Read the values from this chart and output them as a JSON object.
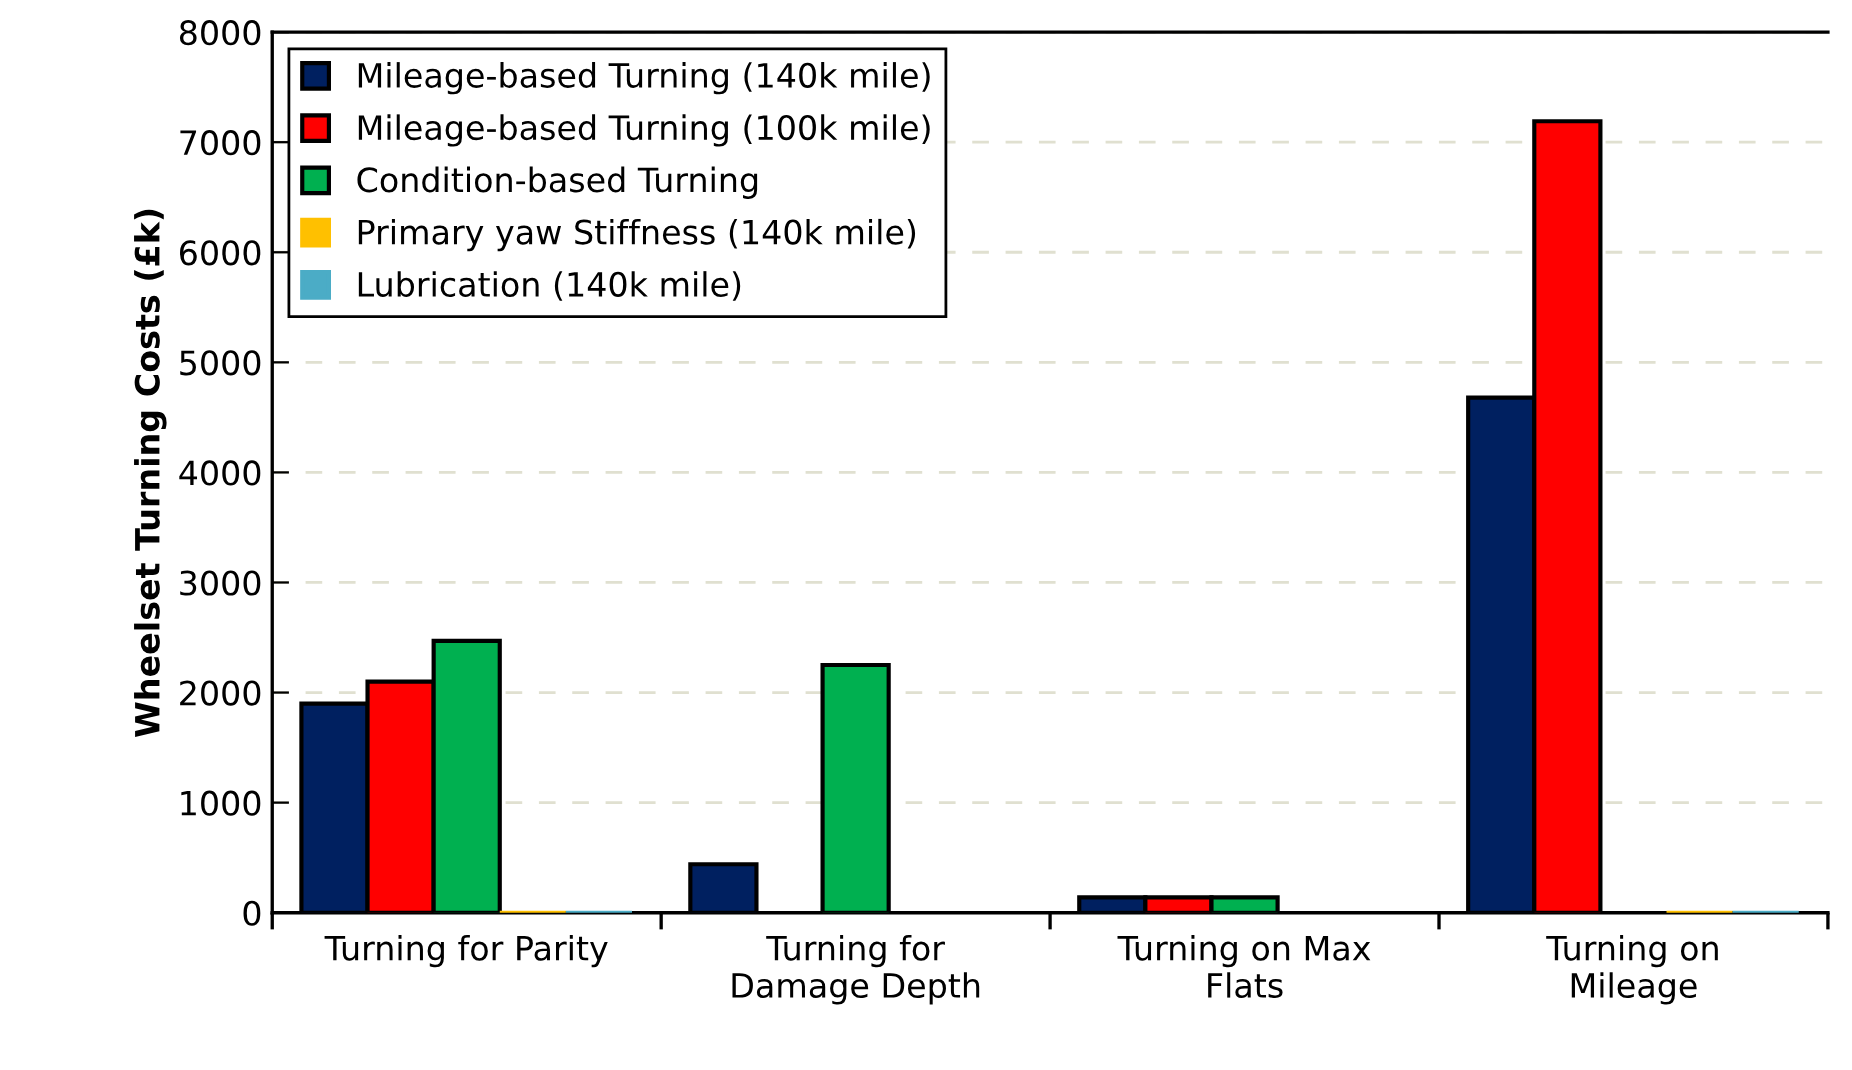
{
  "chart_data": {
    "type": "bar",
    "ylabel": "Wheelset Turning Costs (£k)",
    "categories": [
      "Turning for Parity",
      "Turning for\nDamage Depth",
      "Turning on Max\nFlats",
      "Turning on\nMileage"
    ],
    "series": [
      {
        "name": "Mileage-based Turning (140k mile)",
        "color": "#002060",
        "values": [
          1900,
          440,
          140,
          4680
        ]
      },
      {
        "name": "Mileage-based Turning (100k mile)",
        "color": "#ff0000",
        "values": [
          2100,
          null,
          140,
          7190
        ]
      },
      {
        "name": "Condition-based Turning",
        "color": "#00b050",
        "values": [
          2470,
          2250,
          140,
          null
        ]
      },
      {
        "name": "Primary yaw Stiffness (140k mile)",
        "color": "#ffc000",
        "values": [
          0,
          null,
          null,
          0
        ]
      },
      {
        "name": "Lubrication (140k mile)",
        "color": "#4bacc6",
        "values": [
          0,
          null,
          null,
          0
        ]
      }
    ],
    "ylim": [
      0,
      8000
    ],
    "yticks": [
      0,
      1000,
      2000,
      3000,
      4000,
      5000,
      6000,
      7000,
      8000
    ],
    "grid": "y",
    "legend": "top left"
  }
}
